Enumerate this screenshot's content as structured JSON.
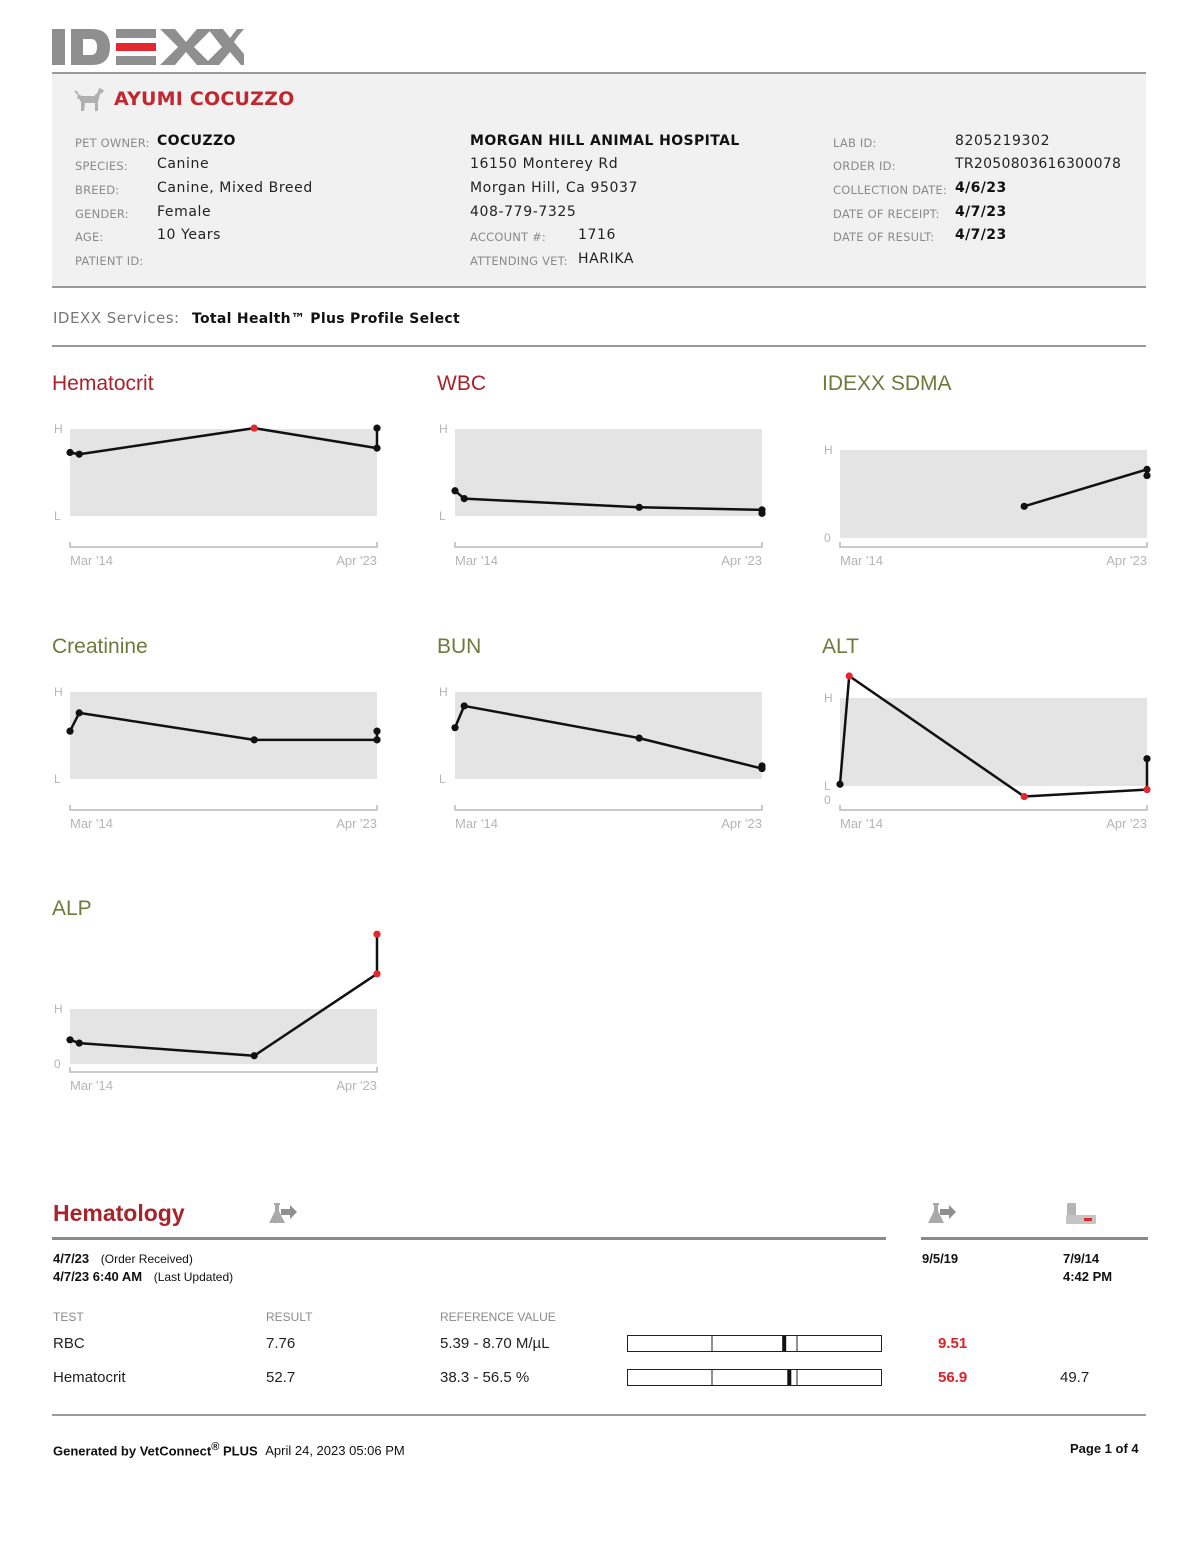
{
  "logo": {
    "text": "IDEXX",
    "accent": "#e3262f"
  },
  "patient": {
    "name": "AYUMI COCUZZO",
    "owner_label": "PET OWNER:",
    "owner": "COCUZZO",
    "species_label": "SPECIES:",
    "species": "Canine",
    "breed_label": "BREED:",
    "breed": "Canine, Mixed Breed",
    "gender_label": "GENDER:",
    "gender": "Female",
    "age_label": "AGE:",
    "age": "10 Years",
    "patient_id_label": "PATIENT ID:"
  },
  "clinic": {
    "name": "MORGAN HILL ANIMAL HOSPITAL",
    "address1": "16150 Monterey Rd",
    "address2": "Morgan Hill, Ca 95037",
    "phone": "408-779-7325",
    "account_label": "ACCOUNT #:",
    "account": "1716",
    "vet_label": "ATTENDING VET:",
    "vet": "HARIKA"
  },
  "lab": {
    "lab_id_label": "LAB ID:",
    "lab_id": "8205219302",
    "order_id_label": "ORDER ID:",
    "order_id": "TR2050803616300078",
    "collection_label": "COLLECTION DATE:",
    "collection": "4/6/23",
    "receipt_label": "DATE OF RECEIPT:",
    "receipt": "4/7/23",
    "result_label": "DATE OF RESULT:",
    "result": "4/7/23"
  },
  "services": {
    "label": "IDEXX Services:",
    "value": "Total Health™ Plus Profile Select"
  },
  "chart_data": [
    {
      "type": "line",
      "title": "Hematocrit",
      "title_color": "#a8232a",
      "band_labels": [
        "H",
        "L"
      ],
      "x_labels": [
        "Mar '14",
        "Apr '23"
      ],
      "points": [
        [
          0.0,
          0.73
        ],
        [
          0.03,
          0.71
        ],
        [
          0.6,
          1.01
        ],
        [
          1.0,
          0.78
        ],
        [
          1.0,
          1.01
        ]
      ],
      "flags": [
        "normal",
        "normal",
        "high",
        "normal",
        "normal"
      ]
    },
    {
      "type": "line",
      "title": "WBC",
      "title_color": "#a8232a",
      "band_labels": [
        "H",
        "L"
      ],
      "x_labels": [
        "Mar '14",
        "Apr '23"
      ],
      "points": [
        [
          0.0,
          0.29
        ],
        [
          0.03,
          0.2
        ],
        [
          0.6,
          0.1
        ],
        [
          1.0,
          0.07
        ],
        [
          1.0,
          0.03
        ]
      ],
      "flags": [
        "normal",
        "normal",
        "normal",
        "normal",
        "normal"
      ]
    },
    {
      "type": "line",
      "title": "IDEXX SDMA",
      "title_color": "#6e7a3c",
      "band_labels": [
        "H",
        "0"
      ],
      "x_labels": [
        "Mar '14",
        "Apr '23"
      ],
      "points": [
        [
          0.6,
          0.36
        ],
        [
          1.0,
          0.78
        ],
        [
          1.0,
          0.71
        ]
      ],
      "flags": [
        "normal",
        "normal",
        "normal"
      ]
    },
    {
      "type": "line",
      "title": "Creatinine",
      "title_color": "#6e7a3c",
      "band_labels": [
        "H",
        "L"
      ],
      "x_labels": [
        "Mar '14",
        "Apr '23"
      ],
      "points": [
        [
          0.0,
          0.55
        ],
        [
          0.03,
          0.76
        ],
        [
          0.6,
          0.45
        ],
        [
          1.0,
          0.45
        ],
        [
          1.0,
          0.55
        ]
      ],
      "flags": [
        "normal",
        "normal",
        "normal",
        "normal",
        "normal"
      ]
    },
    {
      "type": "line",
      "title": "BUN",
      "title_color": "#6e7a3c",
      "band_labels": [
        "H",
        "L"
      ],
      "x_labels": [
        "Mar '14",
        "Apr '23"
      ],
      "points": [
        [
          0.0,
          0.59
        ],
        [
          0.03,
          0.84
        ],
        [
          0.6,
          0.47
        ],
        [
          1.0,
          0.12
        ],
        [
          1.0,
          0.15
        ]
      ],
      "flags": [
        "normal",
        "normal",
        "normal",
        "normal",
        "normal"
      ]
    },
    {
      "type": "line",
      "title": "ALT",
      "title_color": "#6e7a3c",
      "band_labels": [
        "H",
        "L",
        "0"
      ],
      "x_labels": [
        "Mar '14",
        "Apr '23"
      ],
      "points": [
        [
          0.0,
          0.02
        ],
        [
          0.03,
          1.25
        ],
        [
          0.6,
          -0.12
        ],
        [
          1.0,
          -0.04
        ],
        [
          1.0,
          0.31
        ]
      ],
      "flags": [
        "normal",
        "high",
        "low",
        "low",
        "normal"
      ]
    },
    {
      "type": "line",
      "title": "ALP",
      "title_color": "#6e7a3c",
      "band_labels": [
        "H",
        "0"
      ],
      "x_labels": [
        "Mar '14",
        "Apr '23"
      ],
      "points": [
        [
          0.0,
          0.44
        ],
        [
          0.03,
          0.38
        ],
        [
          0.6,
          0.15
        ],
        [
          1.0,
          1.64
        ],
        [
          1.0,
          2.36
        ]
      ],
      "flags": [
        "normal",
        "normal",
        "normal",
        "high",
        "high"
      ]
    }
  ],
  "hematology": {
    "title": "Hematology",
    "date": "4/7/23",
    "date_note": "(Order Received)",
    "updated": "4/7/23 6:40 AM",
    "updated_note": "(Last Updated)",
    "prev1_date": "9/5/19",
    "prev2_date": "7/9/14",
    "prev2_time": "4:42 PM",
    "headers": {
      "test": "TEST",
      "result": "RESULT",
      "reference": "REFERENCE VALUE"
    },
    "rows": [
      {
        "test": "RBC",
        "result": "7.76",
        "reference": "5.39 - 8.70 M/µL",
        "marker": 0.62,
        "prev1": "9.51",
        "prev1_flag": "high",
        "prev2": ""
      },
      {
        "test": "Hematocrit",
        "result": "52.7",
        "reference": "38.3 - 56.5 %",
        "marker": 0.64,
        "prev1": "56.9",
        "prev1_flag": "high",
        "prev2": "49.7"
      }
    ]
  },
  "footer": {
    "generated": "Generated by VetConnect",
    "registered": "®",
    "plus": "PLUS",
    "datetime": "April 24, 2023 05:06 PM",
    "page": "Page 1 of 4"
  }
}
